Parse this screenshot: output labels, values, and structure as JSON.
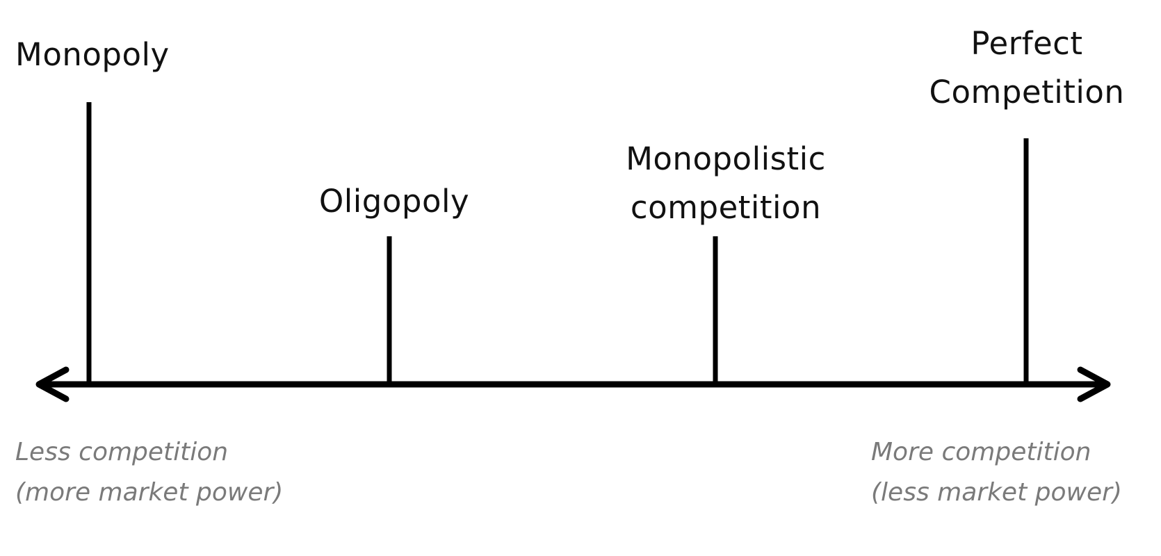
{
  "diagram": {
    "markets": [
      {
        "name": "monopoly",
        "lines": [
          "Monopoly"
        ]
      },
      {
        "name": "oligopoly",
        "lines": [
          "Oligopoly"
        ]
      },
      {
        "name": "monopolistic-competition",
        "lines": [
          "Monopolistic",
          "competition"
        ]
      },
      {
        "name": "perfect-competition",
        "lines": [
          "Perfect",
          "Competition"
        ]
      }
    ],
    "left_note": {
      "lines": [
        "Less competition",
        "(more market power)"
      ]
    },
    "right_note": {
      "lines": [
        "More competition",
        "(less market power)"
      ]
    },
    "colors": {
      "line": "#000000",
      "label": "#111111",
      "note": "#7a7a7a",
      "background": "#ffffff"
    }
  }
}
